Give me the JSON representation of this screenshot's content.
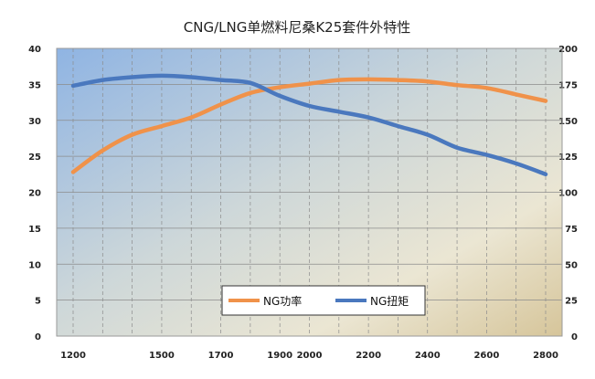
{
  "chart_data": {
    "type": "line",
    "title": "CNG/LNG单燃料尼桑K25套件外特性",
    "x": [
      1200,
      1300,
      1400,
      1500,
      1600,
      1700,
      1800,
      1900,
      2000,
      2100,
      2200,
      2300,
      2400,
      2500,
      2600,
      2700,
      2800
    ],
    "x_ticks": [
      1200,
      1500,
      1700,
      1900,
      2000,
      2200,
      2400,
      2600,
      2800
    ],
    "xlim": [
      1200,
      2800
    ],
    "y_left": {
      "lim": [
        0,
        40
      ],
      "ticks": [
        0,
        5,
        10,
        15,
        20,
        25,
        30,
        35,
        40
      ]
    },
    "y_right": {
      "lim": [
        0,
        200
      ],
      "ticks": [
        0,
        25,
        50,
        75,
        100,
        125,
        150,
        175,
        200
      ]
    },
    "series": [
      {
        "name": "NG功率",
        "color": "#f0924a",
        "axis": "left",
        "values": [
          22.8,
          25.8,
          28.0,
          29.2,
          30.4,
          32.2,
          33.8,
          34.6,
          35.1,
          35.6,
          35.7,
          35.6,
          35.4,
          34.9,
          34.5,
          33.6,
          32.7
        ]
      },
      {
        "name": "NG扭矩",
        "color": "#4a78be",
        "axis": "right",
        "values": [
          174,
          178,
          180,
          181,
          180,
          178,
          176,
          167,
          160,
          156,
          152,
          146,
          140,
          131,
          126,
          120,
          112.5
        ]
      }
    ],
    "legend": {
      "position": "bottom-center"
    },
    "grid": true,
    "colors": {
      "plot_gradient": [
        "#8fb4e3",
        "#cdd7d9",
        "#ebe6d3",
        "#d6c59a"
      ],
      "grid": "#8c8c8c"
    }
  }
}
